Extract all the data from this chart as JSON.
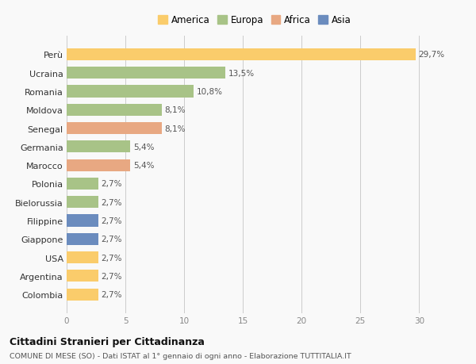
{
  "categories": [
    "Colombia",
    "Argentina",
    "USA",
    "Giappone",
    "Filippine",
    "Bielorussia",
    "Polonia",
    "Marocco",
    "Germania",
    "Senegal",
    "Moldova",
    "Romania",
    "Ucraina",
    "Perù"
  ],
  "values": [
    2.7,
    2.7,
    2.7,
    2.7,
    2.7,
    2.7,
    2.7,
    5.4,
    5.4,
    8.1,
    8.1,
    10.8,
    13.5,
    29.7
  ],
  "colors": [
    "#FACC6B",
    "#FACC6B",
    "#FACC6B",
    "#6B8CBE",
    "#6B8CBE",
    "#A8C387",
    "#A8C387",
    "#E8A882",
    "#A8C387",
    "#E8A882",
    "#A8C387",
    "#A8C387",
    "#A8C387",
    "#FACC6B"
  ],
  "labels": [
    "2,7%",
    "2,7%",
    "2,7%",
    "2,7%",
    "2,7%",
    "2,7%",
    "2,7%",
    "5,4%",
    "5,4%",
    "8,1%",
    "8,1%",
    "10,8%",
    "13,5%",
    "29,7%"
  ],
  "legend": [
    {
      "label": "America",
      "color": "#FACC6B"
    },
    {
      "label": "Europa",
      "color": "#A8C387"
    },
    {
      "label": "Africa",
      "color": "#E8A882"
    },
    {
      "label": "Asia",
      "color": "#6B8CBE"
    }
  ],
  "xlim": [
    0,
    32
  ],
  "xticks": [
    0,
    5,
    10,
    15,
    20,
    25,
    30
  ],
  "title1": "Cittadini Stranieri per Cittadinanza",
  "title2": "COMUNE DI MESE (SO) - Dati ISTAT al 1° gennaio di ogni anno - Elaborazione TUTTITALIA.IT",
  "background_color": "#f9f9f9",
  "grid_color": "#cccccc"
}
